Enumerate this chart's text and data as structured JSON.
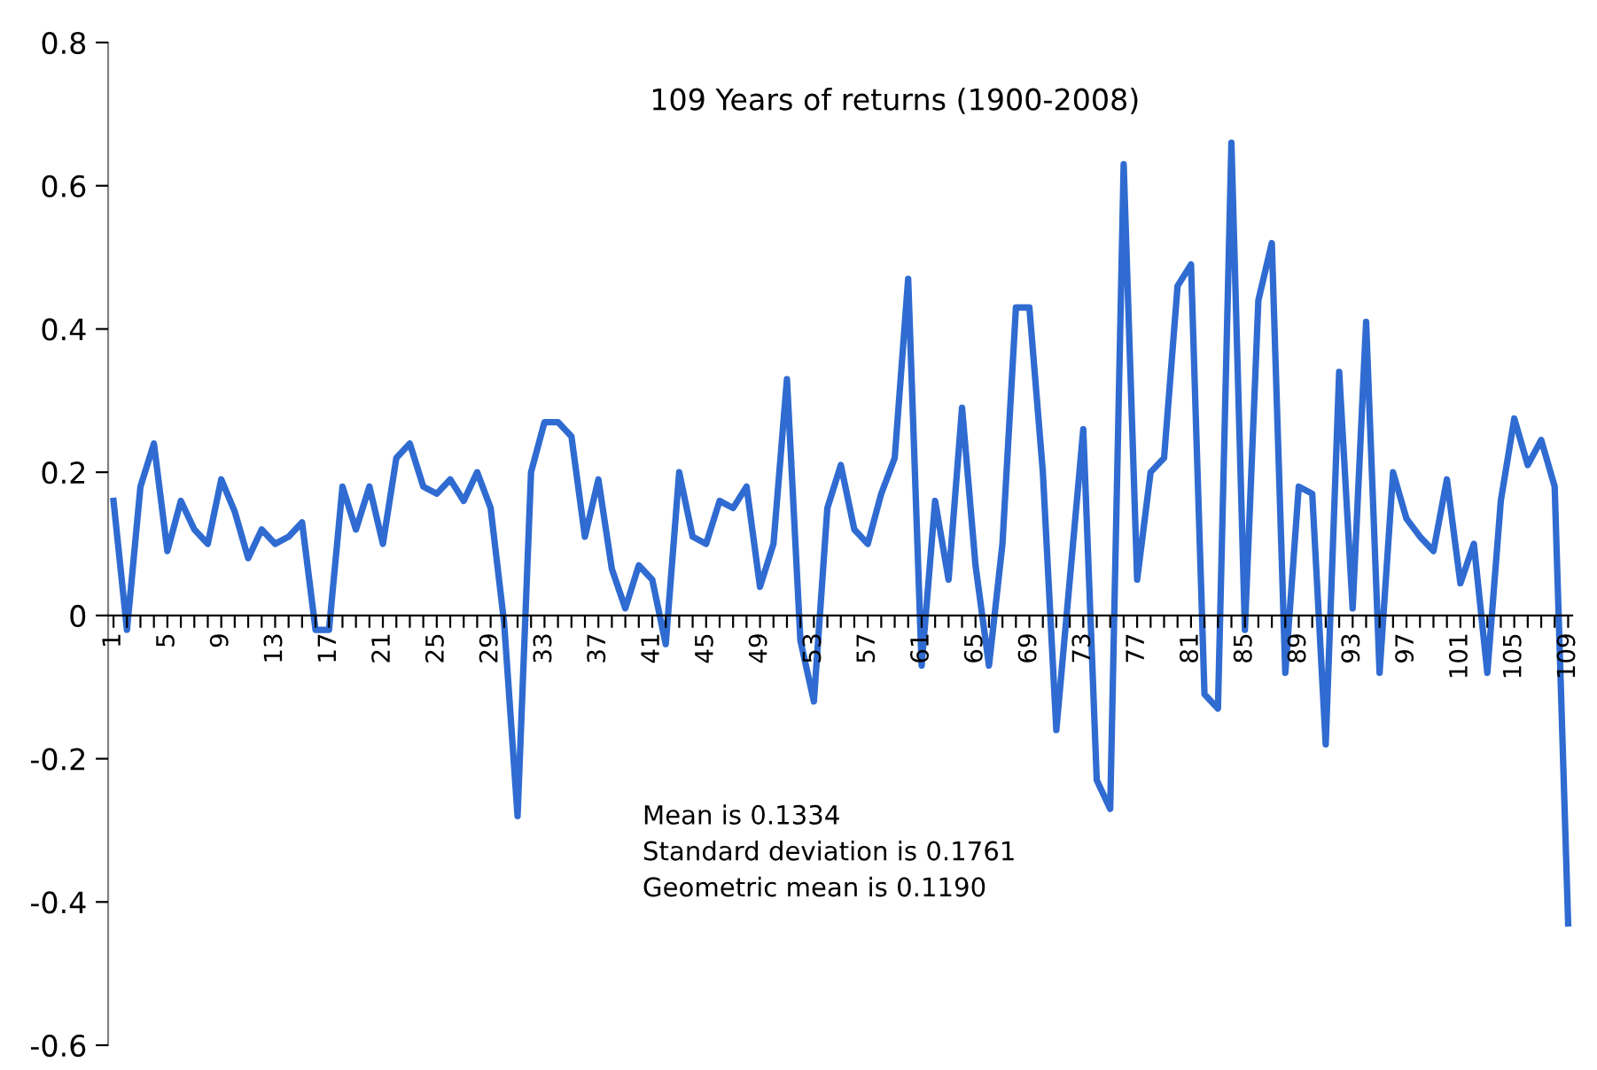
{
  "chart_data": {
    "type": "line",
    "title": "109 Years of returns (1900-2008)",
    "categories": [
      "1",
      null,
      null,
      null,
      "5",
      null,
      null,
      null,
      "9",
      null,
      null,
      null,
      "13",
      null,
      null,
      null,
      "17",
      null,
      null,
      null,
      "21",
      null,
      null,
      null,
      "25",
      null,
      null,
      null,
      "29",
      null,
      null,
      null,
      "33",
      null,
      null,
      null,
      "37",
      null,
      null,
      null,
      "41",
      null,
      null,
      null,
      "45",
      null,
      null,
      null,
      "49",
      null,
      null,
      null,
      "53",
      null,
      null,
      null,
      "57",
      null,
      null,
      null,
      "61",
      null,
      null,
      null,
      "65",
      null,
      null,
      null,
      "69",
      null,
      null,
      null,
      "73",
      null,
      null,
      null,
      "77",
      null,
      null,
      null,
      "81",
      null,
      null,
      null,
      "85",
      null,
      null,
      null,
      "89",
      null,
      null,
      null,
      "93",
      null,
      null,
      null,
      "97",
      null,
      null,
      null,
      "101",
      null,
      null,
      null,
      "105",
      null,
      null,
      null,
      "109"
    ],
    "series": [
      {
        "color": "#2f6bd1",
        "values": [
          0.16,
          -0.02,
          0.18,
          0.24,
          0.09,
          0.16,
          0.12,
          0.1,
          0.19,
          0.145,
          0.08,
          0.12,
          0.1,
          0.11,
          0.13,
          -0.02,
          -0.02,
          0.18,
          0.12,
          0.18,
          0.1,
          0.22,
          0.24,
          0.18,
          0.17,
          0.19,
          0.16,
          0.2,
          0.15,
          -0.01,
          -0.28,
          0.2,
          0.27,
          0.27,
          0.25,
          0.11,
          0.19,
          0.065,
          0.01,
          0.07,
          0.05,
          -0.04,
          0.2,
          0.11,
          0.1,
          0.16,
          0.15,
          0.18,
          0.04,
          0.1,
          0.33,
          -0.035,
          -0.12,
          0.15,
          0.21,
          0.12,
          0.1,
          0.17,
          0.22,
          0.47,
          -0.07,
          0.16,
          0.05,
          0.29,
          0.07,
          -0.07,
          0.1,
          0.43,
          0.43,
          0.2,
          -0.16,
          0.05,
          0.26,
          -0.23,
          -0.27,
          0.63,
          0.05,
          0.2,
          0.22,
          0.46,
          0.49,
          -0.11,
          -0.13,
          0.66,
          -0.02,
          0.44,
          0.52,
          -0.08,
          0.18,
          0.17,
          -0.18,
          0.34,
          0.01,
          0.41,
          -0.08,
          0.2,
          0.135,
          0.11,
          0.09,
          0.19,
          0.045,
          0.1,
          -0.08,
          0.16,
          0.275,
          0.21,
          0.245,
          0.18,
          -0.43
        ]
      }
    ],
    "ylim": [
      -0.6,
      0.8
    ],
    "yticks": [
      -0.6,
      -0.4,
      -0.2,
      0,
      0.2,
      0.4,
      0.6,
      0.8
    ],
    "grid": false,
    "marker": "none",
    "line_style": "solid",
    "annotations": [
      "Mean is 0.1334",
      "Standard deviation is 0.1761",
      "Geometric mean is 0.1190"
    ]
  }
}
